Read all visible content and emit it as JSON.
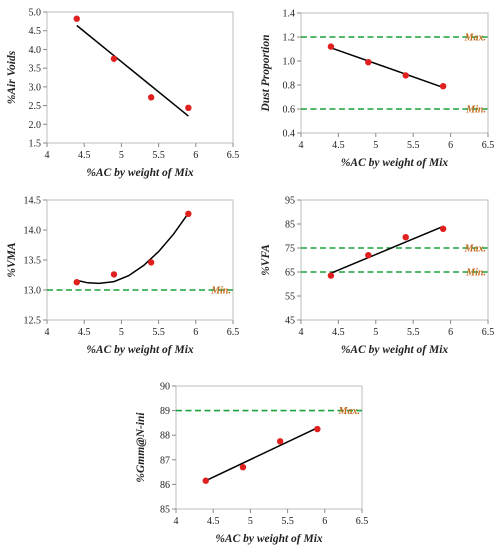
{
  "chart_data": [
    {
      "type": "scatter",
      "xlabel": "%AC by weight of Mix",
      "ylabel": "%Air Voids",
      "xlim": [
        4,
        6.5
      ],
      "ylim": [
        1.5,
        5.0
      ],
      "xticks": [
        "4",
        "4.5",
        "5",
        "5.5",
        "6",
        "6.5"
      ],
      "yticks": [
        "1.5",
        "2.0",
        "2.5",
        "3.0",
        "3.5",
        "4.0",
        "4.5",
        "5.0"
      ],
      "points": [
        {
          "x": 4.4,
          "y": 4.82
        },
        {
          "x": 4.9,
          "y": 3.75
        },
        {
          "x": 5.4,
          "y": 2.72
        },
        {
          "x": 5.9,
          "y": 2.44
        }
      ],
      "trend": {
        "kind": "linear",
        "x": [
          4.4,
          5.9
        ],
        "y": [
          4.64,
          2.22
        ]
      },
      "reference_lines": [],
      "colors": {
        "points": "#e01f1f",
        "trend": "#000000",
        "reference": "#1aa33a",
        "reference_label": "#c06a1e"
      }
    },
    {
      "type": "scatter",
      "xlabel": "%AC by weight of Mix",
      "ylabel": "Dust Proportion",
      "xlim": [
        4,
        6.5
      ],
      "ylim": [
        0.4,
        1.4
      ],
      "xticks": [
        "4",
        "4.5",
        "5",
        "5.5",
        "6",
        "6.5"
      ],
      "yticks": [
        "0.4",
        "0.6",
        "0.8",
        "1.0",
        "1.2",
        "1.4"
      ],
      "points": [
        {
          "x": 4.4,
          "y": 1.12
        },
        {
          "x": 4.9,
          "y": 0.99
        },
        {
          "x": 5.4,
          "y": 0.88
        },
        {
          "x": 5.9,
          "y": 0.79
        }
      ],
      "trend": {
        "kind": "linear",
        "x": [
          4.4,
          5.9
        ],
        "y": [
          1.11,
          0.78
        ]
      },
      "reference_lines": [
        {
          "label": "Max.",
          "y": 1.2
        },
        {
          "label": "Min.",
          "y": 0.6
        }
      ],
      "colors": {
        "points": "#e01f1f",
        "trend": "#000000",
        "reference": "#1aa33a",
        "reference_label": "#c06a1e"
      }
    },
    {
      "type": "scatter",
      "xlabel": "%AC by weight of Mix",
      "ylabel": "%VMA",
      "xlim": [
        4,
        6.5
      ],
      "ylim": [
        12.5,
        14.5
      ],
      "xticks": [
        "4",
        "4.5",
        "5",
        "5.5",
        "6",
        "6.5"
      ],
      "yticks": [
        "12.5",
        "13.0",
        "13.5",
        "14.0",
        "14.5"
      ],
      "points": [
        {
          "x": 4.4,
          "y": 13.13
        },
        {
          "x": 4.9,
          "y": 13.26
        },
        {
          "x": 5.4,
          "y": 13.46
        },
        {
          "x": 5.9,
          "y": 14.27
        }
      ],
      "trend": {
        "kind": "curve",
        "x": [
          4.4,
          4.55,
          4.7,
          4.9,
          5.1,
          5.3,
          5.5,
          5.7,
          5.9
        ],
        "y": [
          13.16,
          13.12,
          13.11,
          13.14,
          13.24,
          13.41,
          13.64,
          13.93,
          14.28
        ]
      },
      "reference_lines": [
        {
          "label": "Min.",
          "y": 13.0
        }
      ],
      "colors": {
        "points": "#e01f1f",
        "trend": "#000000",
        "reference": "#1aa33a",
        "reference_label": "#c06a1e"
      }
    },
    {
      "type": "scatter",
      "xlabel": "%AC by weight of Mix",
      "ylabel": "%VFA",
      "xlim": [
        4,
        6.5
      ],
      "ylim": [
        45,
        95
      ],
      "xticks": [
        "4",
        "4.5",
        "5",
        "5.5",
        "6",
        "6.5"
      ],
      "yticks": [
        "45",
        "55",
        "65",
        "75",
        "85",
        "95"
      ],
      "points": [
        {
          "x": 4.4,
          "y": 63.5
        },
        {
          "x": 4.9,
          "y": 72.0
        },
        {
          "x": 5.4,
          "y": 79.5
        },
        {
          "x": 5.9,
          "y": 83.0
        }
      ],
      "trend": {
        "kind": "linear",
        "x": [
          4.4,
          5.9
        ],
        "y": [
          64.5,
          84.0
        ]
      },
      "reference_lines": [
        {
          "label": "Max.",
          "y": 75
        },
        {
          "label": "Min.",
          "y": 65
        }
      ],
      "colors": {
        "points": "#e01f1f",
        "trend": "#000000",
        "reference": "#1aa33a",
        "reference_label": "#c06a1e"
      }
    },
    {
      "type": "scatter",
      "xlabel": "%AC by weight of Mix",
      "ylabel": "%Gmm@N-ini",
      "xlim": [
        4,
        6.5
      ],
      "ylim": [
        85,
        90
      ],
      "xticks": [
        "4",
        "4.5",
        "5",
        "5.5",
        "6",
        "6.5"
      ],
      "yticks": [
        "85",
        "86",
        "87",
        "88",
        "89",
        "90"
      ],
      "points": [
        {
          "x": 4.4,
          "y": 86.15
        },
        {
          "x": 4.9,
          "y": 86.7
        },
        {
          "x": 5.4,
          "y": 87.75
        },
        {
          "x": 5.9,
          "y": 88.25
        }
      ],
      "trend": {
        "kind": "linear",
        "x": [
          4.4,
          5.9
        ],
        "y": [
          86.15,
          88.3
        ]
      },
      "reference_lines": [
        {
          "label": "Max.",
          "y": 89
        }
      ],
      "colors": {
        "points": "#e01f1f",
        "trend": "#000000",
        "reference": "#1aa33a",
        "reference_label": "#c06a1e"
      }
    }
  ]
}
